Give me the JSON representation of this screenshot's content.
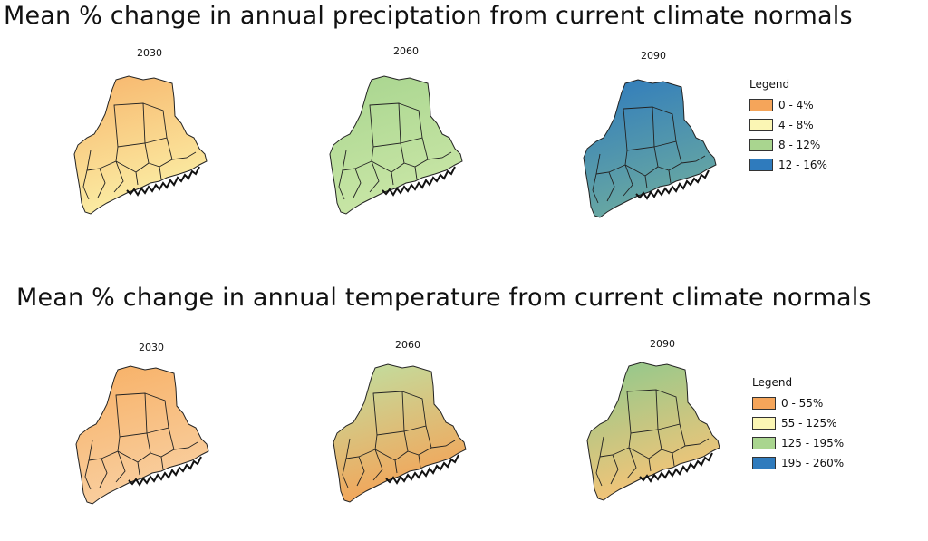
{
  "precipitation": {
    "title": "Mean % change in annual preciptation from current climate normals",
    "legend": {
      "title": "Legend",
      "items": [
        {
          "label": "0 - 4%",
          "color": "#f5a55a"
        },
        {
          "label": "4 - 8%",
          "color": "#fbf6b4"
        },
        {
          "label": "8 - 12%",
          "color": "#a9d58f"
        },
        {
          "label": "12 - 16%",
          "color": "#2f7bbd"
        }
      ]
    },
    "maps": [
      {
        "year": "2030",
        "fill_top": "#f7b56c",
        "fill_bottom": "#fbeea5"
      },
      {
        "year": "2060",
        "fill_top": "#a8d58f",
        "fill_bottom": "#c9e6a6"
      },
      {
        "year": "2090",
        "fill_top": "#2f7bbd",
        "fill_bottom": "#6aa9a1"
      }
    ]
  },
  "temperature": {
    "title": "Mean % change in annual temperature from current climate normals",
    "legend": {
      "title": "Legend",
      "items": [
        {
          "label": "0 - 55%",
          "color": "#f5a55a"
        },
        {
          "label": "55 - 125%",
          "color": "#fbf6b4"
        },
        {
          "label": "125 - 195%",
          "color": "#a9d58f"
        },
        {
          "label": "195 - 260%",
          "color": "#2f7bbd"
        }
      ]
    },
    "maps": [
      {
        "year": "2030",
        "fill_top": "#f7b065",
        "fill_bottom": "#f9cfa0"
      },
      {
        "year": "2060",
        "fill_top": "#bfe0a2",
        "fill_bottom": "#f4a458"
      },
      {
        "year": "2090",
        "fill_top": "#8ec98d",
        "fill_bottom": "#f6c477"
      }
    ]
  }
}
